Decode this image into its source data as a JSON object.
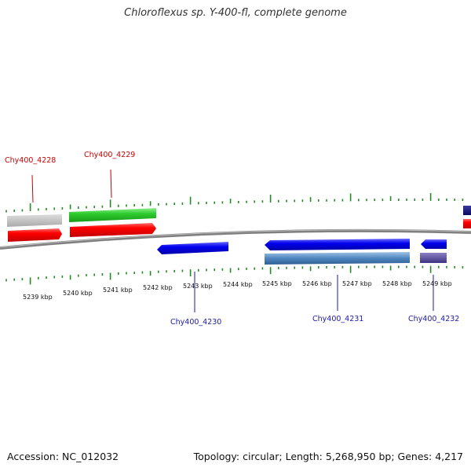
{
  "title": "Chloroflexus sp. Y-400-fl, complete genome",
  "accession_label": "Accession: NC_012032",
  "topology_label": "Topology: circular; Length: 5,268,950 bp; Genes: 4,217",
  "colors": {
    "forward_label": "#cc0000",
    "reverse_label": "#1a1aaa",
    "backbone": "#808080",
    "ticks": "#228b22"
  },
  "scale_labels": [
    "5239 kbp",
    "5240 kbp",
    "5241 kbp",
    "5242 kbp",
    "5243 kbp",
    "5244 kbp",
    "5245 kbp",
    "5246 kbp",
    "5247 kbp",
    "5248 kbp",
    "5249 kbp"
  ],
  "gene_labels": {
    "g4228": "Chy400_4228",
    "g4229": "Chy400_4229",
    "g4230": "Chy400_4230",
    "g4231": "Chy400_4231",
    "g4232": "Chy400_4232"
  }
}
